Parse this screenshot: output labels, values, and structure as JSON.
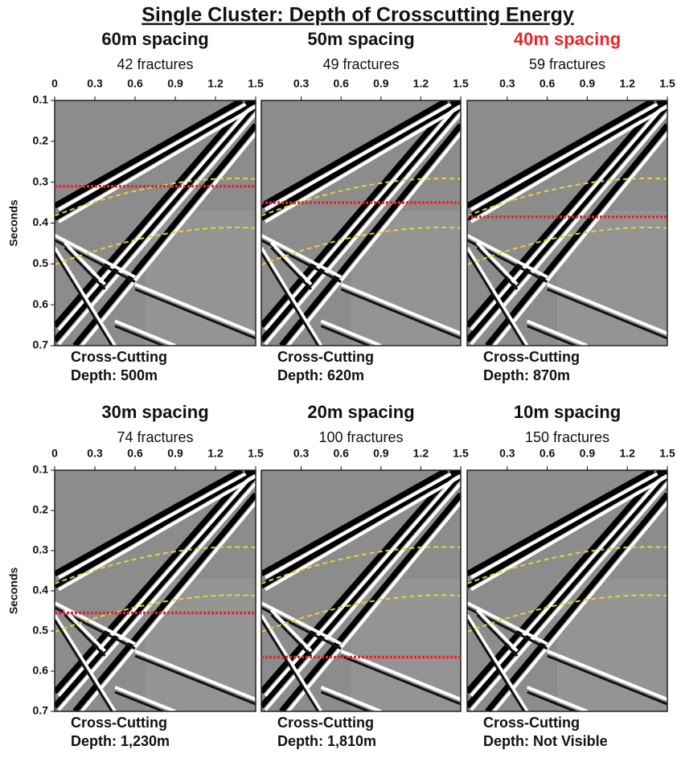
{
  "title": "Single Cluster: Depth of Crosscutting Energy",
  "chart_data": [
    {
      "type": "seismic",
      "title": "60m spacing",
      "title_color": "#111111",
      "subtitle": "42 fractures",
      "y_label": "Seconds",
      "xlim": [
        0,
        1.5
      ],
      "xticks": [
        0,
        0.3,
        0.6,
        0.9,
        1.2,
        1.5
      ],
      "ylim": [
        0.1,
        0.7
      ],
      "yticks": [
        0.1,
        0.2,
        0.3,
        0.4,
        0.5,
        0.6,
        0.7
      ],
      "crosscut_line": {
        "value": 0.31,
        "color": "#e8262b"
      },
      "annotations": [
        "Cross-Cutting",
        "Depth: 500m"
      ]
    },
    {
      "type": "seismic",
      "title": "50m spacing",
      "title_color": "#111111",
      "subtitle": "49 fractures",
      "xlim": [
        0,
        1.5
      ],
      "xticks": [
        0.3,
        0.6,
        0.9,
        1.2,
        1.5
      ],
      "ylim": [
        0.1,
        0.7
      ],
      "crosscut_line": {
        "value": 0.35,
        "color": "#e8262b"
      },
      "annotations": [
        "Cross-Cutting",
        "Depth: 620m"
      ]
    },
    {
      "type": "seismic",
      "title": "40m spacing",
      "title_color": "#e8262b",
      "subtitle": "59 fractures",
      "xlim": [
        0,
        1.5
      ],
      "xticks": [
        0.3,
        0.6,
        0.9,
        1.2,
        1.5
      ],
      "ylim": [
        0.1,
        0.7
      ],
      "crosscut_line": {
        "value": 0.385,
        "color": "#e8262b"
      },
      "annotations": [
        "Cross-Cutting",
        "Depth: 870m"
      ]
    },
    {
      "type": "seismic",
      "title": "30m spacing",
      "title_color": "#111111",
      "subtitle": "74 fractures",
      "y_label": "Seconds",
      "xlim": [
        0,
        1.5
      ],
      "xticks": [
        0,
        0.3,
        0.6,
        0.9,
        1.2,
        1.5
      ],
      "ylim": [
        0.1,
        0.7
      ],
      "yticks": [
        0.1,
        0.2,
        0.3,
        0.4,
        0.5,
        0.6,
        0.7
      ],
      "crosscut_line": {
        "value": 0.455,
        "color": "#e8262b"
      },
      "annotations": [
        "Cross-Cutting",
        "Depth: 1,230m"
      ]
    },
    {
      "type": "seismic",
      "title": "20m spacing",
      "title_color": "#111111",
      "subtitle": "100 fractures",
      "xlim": [
        0,
        1.5
      ],
      "xticks": [
        0.3,
        0.6,
        0.9,
        1.2,
        1.5
      ],
      "ylim": [
        0.1,
        0.7
      ],
      "crosscut_line": {
        "value": 0.565,
        "color": "#e8262b"
      },
      "annotations": [
        "Cross-Cutting",
        "Depth: 1,810m"
      ]
    },
    {
      "type": "seismic",
      "title": "10m spacing",
      "title_color": "#111111",
      "subtitle": "150 fractures",
      "xlim": [
        0,
        1.5
      ],
      "xticks": [
        0.3,
        0.6,
        0.9,
        1.2,
        1.5
      ],
      "ylim": [
        0.1,
        0.7
      ],
      "crosscut_line": null,
      "annotations": [
        "Cross-Cutting",
        "Depth: Not Visible"
      ]
    }
  ]
}
